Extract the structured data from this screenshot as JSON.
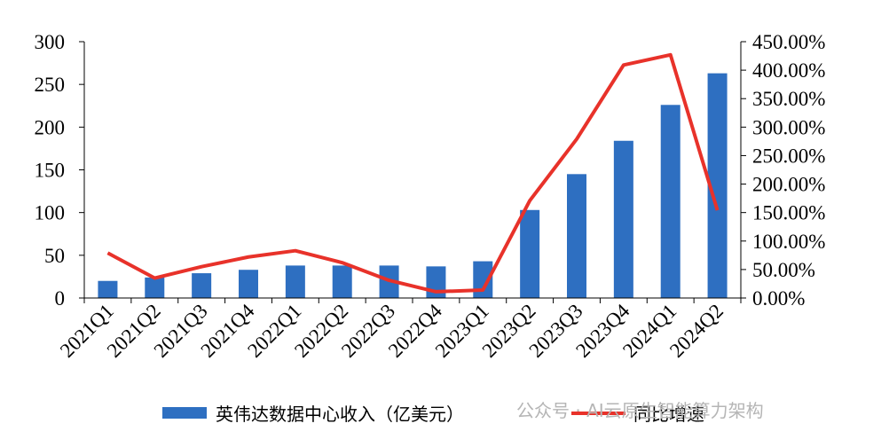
{
  "chart_data": {
    "type": "bar",
    "categories": [
      "2021Q1",
      "2021Q2",
      "2021Q3",
      "2021Q4",
      "2022Q1",
      "2022Q2",
      "2022Q3",
      "2022Q4",
      "2023Q1",
      "2023Q2",
      "2023Q3",
      "2023Q4",
      "2024Q1",
      "2024Q2"
    ],
    "series": [
      {
        "name": "英伟达数据中心收入（亿美元）",
        "type": "bar",
        "axis": "left",
        "color": "#2e6fc1",
        "values": [
          20,
          24,
          29,
          33,
          38,
          38,
          38,
          37,
          43,
          103,
          145,
          184,
          226,
          263
        ]
      },
      {
        "name": "同比增速",
        "type": "line",
        "axis": "right",
        "color": "#e8322a",
        "values": [
          79,
          35,
          55,
          72,
          83,
          62,
          31,
          11,
          14,
          171,
          279,
          409,
          427,
          154
        ]
      }
    ],
    "y_left": {
      "min": 0,
      "max": 300,
      "ticks": [
        "0",
        "50",
        "100",
        "150",
        "200",
        "250",
        "300"
      ]
    },
    "y_right": {
      "min": 0,
      "max": 450,
      "ticks": [
        "0.00%",
        "50.00%",
        "100.00%",
        "150.00%",
        "200.00%",
        "250.00%",
        "300.00%",
        "350.00%",
        "400.00%",
        "450.00%"
      ]
    },
    "grid": false,
    "legend_position": "bottom",
    "watermark": "公众号 · AI云原生智能算力架构"
  }
}
